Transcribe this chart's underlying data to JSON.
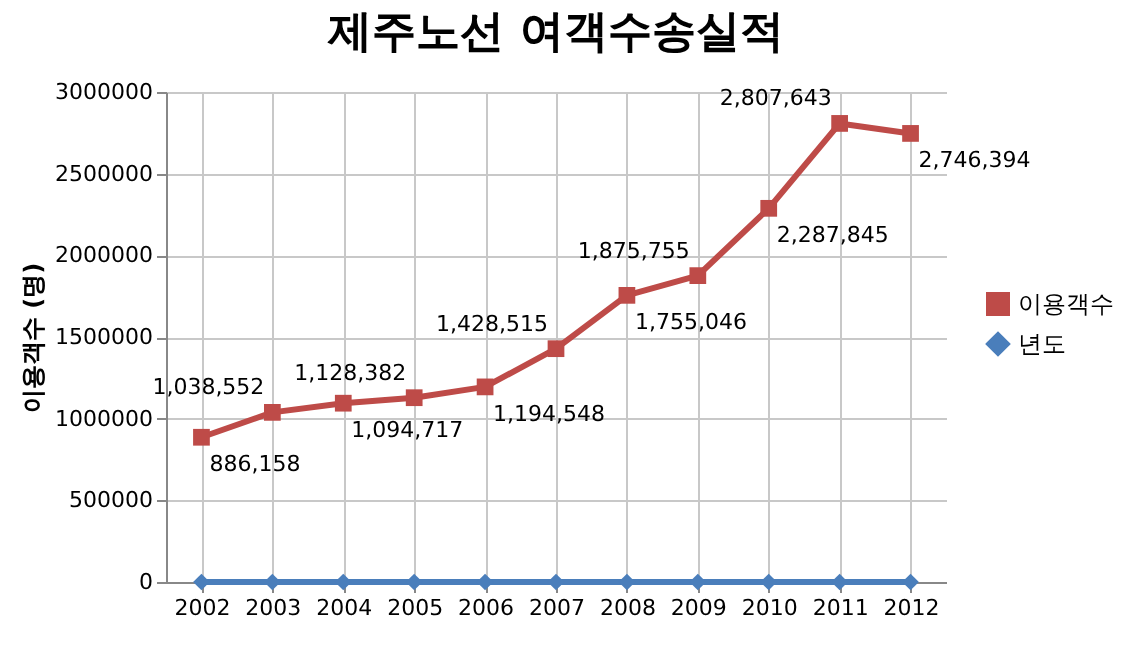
{
  "chart_data": {
    "type": "line",
    "title": "제주노선 여객수송실적",
    "ylabel": "이용객수 (명)",
    "categories": [
      "2002",
      "2003",
      "2004",
      "2005",
      "2006",
      "2007",
      "2008",
      "2009",
      "2010",
      "2011",
      "2012"
    ],
    "series": [
      {
        "name": "이용객수",
        "color": "#be4b48",
        "marker": "square",
        "values": [
          886158,
          1038552,
          1094717,
          1128382,
          1194548,
          1428515,
          1755046,
          1875755,
          2287845,
          2807643,
          2746394
        ],
        "value_labels": [
          "886,158",
          "1,038,552",
          "1,094,717",
          "1,128,382",
          "1,194,548",
          "1,428,515",
          "1,755,046",
          "1,875,755",
          "2,287,845",
          "2,807,643",
          "2,746,394"
        ]
      },
      {
        "name": "년도",
        "color": "#4a7ebb",
        "marker": "diamond",
        "values": [
          0,
          0,
          0,
          0,
          0,
          0,
          0,
          0,
          0,
          0,
          0
        ]
      }
    ],
    "ylim": [
      0,
      3000000
    ],
    "yticks": [
      0,
      500000,
      1000000,
      1500000,
      2000000,
      2500000,
      3000000
    ],
    "grid": true,
    "legend": "right"
  }
}
